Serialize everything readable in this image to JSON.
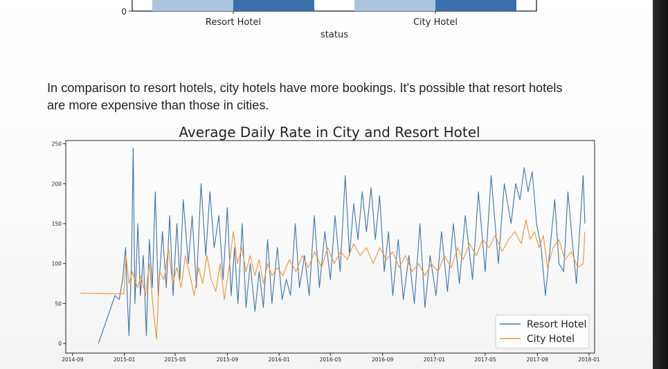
{
  "top_chart": {
    "ytick": "0",
    "categories": [
      "Resort Hotel",
      "City Hotel"
    ],
    "xlabel": "status",
    "colors": [
      "#a9c4de",
      "#3a6fad"
    ]
  },
  "paragraph": "In comparison to resort hotels, city hotels have more bookings. It's possible that resort hotels are more expensive than those in cities.",
  "chart_data": {
    "type": "line",
    "title": "Average Daily Rate in City and Resort Hotel",
    "xlabel": "",
    "ylabel": "",
    "x_ticks": [
      "2014-09",
      "2015-01",
      "2015-05",
      "2015-09",
      "2016-01",
      "2016-05",
      "2016-09",
      "2017-01",
      "2017-05",
      "2017-09",
      "2018-01"
    ],
    "y_ticks": [
      0,
      50,
      100,
      150,
      200,
      250
    ],
    "xlim": [
      "2014-08-16",
      "2018-01-14"
    ],
    "ylim": [
      -12,
      254
    ],
    "legend_position": "lower-right",
    "series": [
      {
        "name": "Resort Hotel",
        "color": "#3b72ad",
        "points": [
          [
            "2014-11-01",
            0
          ],
          [
            "2014-12-10",
            60
          ],
          [
            "2014-12-20",
            55
          ],
          [
            "2014-12-28",
            80
          ],
          [
            "2015-01-04",
            120
          ],
          [
            "2015-01-08",
            60
          ],
          [
            "2015-01-12",
            10
          ],
          [
            "2015-01-18",
            100
          ],
          [
            "2015-01-22",
            245
          ],
          [
            "2015-01-26",
            50
          ],
          [
            "2015-02-02",
            150
          ],
          [
            "2015-02-08",
            60
          ],
          [
            "2015-02-15",
            110
          ],
          [
            "2015-02-22",
            10
          ],
          [
            "2015-03-01",
            130
          ],
          [
            "2015-03-08",
            70
          ],
          [
            "2015-03-15",
            190
          ],
          [
            "2015-03-22",
            60
          ],
          [
            "2015-04-01",
            140
          ],
          [
            "2015-04-10",
            70
          ],
          [
            "2015-04-18",
            160
          ],
          [
            "2015-04-26",
            60
          ],
          [
            "2015-05-05",
            150
          ],
          [
            "2015-05-12",
            80
          ],
          [
            "2015-05-20",
            180
          ],
          [
            "2015-06-01",
            100
          ],
          [
            "2015-06-10",
            160
          ],
          [
            "2015-06-20",
            70
          ],
          [
            "2015-07-01",
            200
          ],
          [
            "2015-07-12",
            110
          ],
          [
            "2015-07-22",
            190
          ],
          [
            "2015-08-01",
            120
          ],
          [
            "2015-08-12",
            160
          ],
          [
            "2015-08-22",
            80
          ],
          [
            "2015-09-01",
            170
          ],
          [
            "2015-09-10",
            60
          ],
          [
            "2015-09-18",
            120
          ],
          [
            "2015-09-26",
            50
          ],
          [
            "2015-10-06",
            150
          ],
          [
            "2015-10-15",
            45
          ],
          [
            "2015-10-25",
            100
          ],
          [
            "2015-11-05",
            40
          ],
          [
            "2015-11-15",
            90
          ],
          [
            "2015-11-25",
            45
          ],
          [
            "2015-12-05",
            130
          ],
          [
            "2015-12-15",
            50
          ],
          [
            "2015-12-28",
            120
          ],
          [
            "2016-01-08",
            55
          ],
          [
            "2016-01-18",
            80
          ],
          [
            "2016-01-28",
            60
          ],
          [
            "2016-02-08",
            150
          ],
          [
            "2016-02-18",
            70
          ],
          [
            "2016-03-01",
            110
          ],
          [
            "2016-03-12",
            60
          ],
          [
            "2016-03-24",
            160
          ],
          [
            "2016-04-05",
            70
          ],
          [
            "2016-04-18",
            140
          ],
          [
            "2016-05-01",
            80
          ],
          [
            "2016-05-12",
            160
          ],
          [
            "2016-05-24",
            90
          ],
          [
            "2016-06-05",
            210
          ],
          [
            "2016-06-15",
            110
          ],
          [
            "2016-06-25",
            175
          ],
          [
            "2016-07-05",
            130
          ],
          [
            "2016-07-15",
            190
          ],
          [
            "2016-07-25",
            140
          ],
          [
            "2016-08-05",
            195
          ],
          [
            "2016-08-15",
            130
          ],
          [
            "2016-08-25",
            185
          ],
          [
            "2016-09-05",
            90
          ],
          [
            "2016-09-15",
            140
          ],
          [
            "2016-09-25",
            60
          ],
          [
            "2016-10-08",
            130
          ],
          [
            "2016-10-20",
            55
          ],
          [
            "2016-11-02",
            110
          ],
          [
            "2016-11-15",
            50
          ],
          [
            "2016-11-28",
            150
          ],
          [
            "2016-12-10",
            45
          ],
          [
            "2016-12-22",
            110
          ],
          [
            "2017-01-05",
            60
          ],
          [
            "2017-01-18",
            140
          ],
          [
            "2017-02-01",
            65
          ],
          [
            "2017-02-15",
            150
          ],
          [
            "2017-03-01",
            75
          ],
          [
            "2017-03-15",
            160
          ],
          [
            "2017-04-01",
            80
          ],
          [
            "2017-04-15",
            190
          ],
          [
            "2017-05-01",
            90
          ],
          [
            "2017-05-15",
            210
          ],
          [
            "2017-06-01",
            100
          ],
          [
            "2017-06-15",
            200
          ],
          [
            "2017-07-01",
            150
          ],
          [
            "2017-07-12",
            200
          ],
          [
            "2017-07-22",
            180
          ],
          [
            "2017-08-01",
            220
          ],
          [
            "2017-08-10",
            190
          ],
          [
            "2017-08-20",
            215
          ],
          [
            "2017-08-30",
            150
          ],
          [
            "2017-09-10",
            120
          ],
          [
            "2017-09-20",
            60
          ],
          [
            "2017-10-01",
            120
          ],
          [
            "2017-10-12",
            180
          ],
          [
            "2017-10-22",
            100
          ],
          [
            "2017-11-02",
            90
          ],
          [
            "2017-11-12",
            190
          ],
          [
            "2017-11-22",
            130
          ],
          [
            "2017-12-02",
            75
          ],
          [
            "2017-12-12",
            160
          ],
          [
            "2017-12-18",
            210
          ],
          [
            "2017-12-22",
            150
          ]
        ]
      },
      {
        "name": "City Hotel",
        "color": "#f0932b",
        "points": [
          [
            "2014-09-20",
            63
          ],
          [
            "2014-12-31",
            62
          ],
          [
            "2015-01-05",
            110
          ],
          [
            "2015-01-12",
            75
          ],
          [
            "2015-01-20",
            90
          ],
          [
            "2015-02-01",
            70
          ],
          [
            "2015-02-10",
            85
          ],
          [
            "2015-02-20",
            60
          ],
          [
            "2015-03-01",
            100
          ],
          [
            "2015-03-10",
            45
          ],
          [
            "2015-03-18",
            5
          ],
          [
            "2015-03-25",
            90
          ],
          [
            "2015-04-05",
            80
          ],
          [
            "2015-04-15",
            120
          ],
          [
            "2015-04-25",
            75
          ],
          [
            "2015-05-05",
            95
          ],
          [
            "2015-05-15",
            70
          ],
          [
            "2015-05-25",
            110
          ],
          [
            "2015-06-05",
            85
          ],
          [
            "2015-06-15",
            60
          ],
          [
            "2015-06-25",
            95
          ],
          [
            "2015-07-05",
            75
          ],
          [
            "2015-07-15",
            110
          ],
          [
            "2015-07-25",
            80
          ],
          [
            "2015-08-05",
            65
          ],
          [
            "2015-08-15",
            100
          ],
          [
            "2015-08-25",
            55
          ],
          [
            "2015-09-05",
            95
          ],
          [
            "2015-09-15",
            140
          ],
          [
            "2015-09-25",
            100
          ],
          [
            "2015-10-05",
            120
          ],
          [
            "2015-10-15",
            90
          ],
          [
            "2015-10-25",
            110
          ],
          [
            "2015-11-05",
            85
          ],
          [
            "2015-11-15",
            105
          ],
          [
            "2015-11-25",
            75
          ],
          [
            "2015-12-05",
            100
          ],
          [
            "2015-12-15",
            85
          ],
          [
            "2015-12-28",
            95
          ],
          [
            "2016-01-10",
            85
          ],
          [
            "2016-01-25",
            105
          ],
          [
            "2016-02-10",
            90
          ],
          [
            "2016-02-25",
            110
          ],
          [
            "2016-03-10",
            95
          ],
          [
            "2016-03-25",
            115
          ],
          [
            "2016-04-10",
            95
          ],
          [
            "2016-04-25",
            120
          ],
          [
            "2016-05-10",
            100
          ],
          [
            "2016-05-25",
            115
          ],
          [
            "2016-06-10",
            105
          ],
          [
            "2016-06-25",
            125
          ],
          [
            "2016-07-10",
            110
          ],
          [
            "2016-07-25",
            120
          ],
          [
            "2016-08-10",
            100
          ],
          [
            "2016-08-25",
            120
          ],
          [
            "2016-09-10",
            105
          ],
          [
            "2016-09-25",
            115
          ],
          [
            "2016-10-10",
            95
          ],
          [
            "2016-10-25",
            110
          ],
          [
            "2016-11-10",
            90
          ],
          [
            "2016-11-25",
            100
          ],
          [
            "2016-12-10",
            85
          ],
          [
            "2016-12-25",
            100
          ],
          [
            "2017-01-10",
            90
          ],
          [
            "2017-01-25",
            110
          ],
          [
            "2017-02-10",
            95
          ],
          [
            "2017-02-25",
            120
          ],
          [
            "2017-03-10",
            105
          ],
          [
            "2017-03-25",
            125
          ],
          [
            "2017-04-10",
            110
          ],
          [
            "2017-04-25",
            130
          ],
          [
            "2017-05-10",
            120
          ],
          [
            "2017-05-25",
            135
          ],
          [
            "2017-06-10",
            115
          ],
          [
            "2017-06-25",
            130
          ],
          [
            "2017-07-10",
            140
          ],
          [
            "2017-07-25",
            125
          ],
          [
            "2017-08-05",
            155
          ],
          [
            "2017-08-15",
            130
          ],
          [
            "2017-08-25",
            140
          ],
          [
            "2017-09-05",
            120
          ],
          [
            "2017-09-15",
            135
          ],
          [
            "2017-09-25",
            95
          ],
          [
            "2017-10-08",
            120
          ],
          [
            "2017-10-22",
            130
          ],
          [
            "2017-11-05",
            105
          ],
          [
            "2017-11-20",
            115
          ],
          [
            "2017-12-05",
            95
          ],
          [
            "2017-12-18",
            100
          ],
          [
            "2017-12-22",
            140
          ]
        ]
      }
    ]
  }
}
